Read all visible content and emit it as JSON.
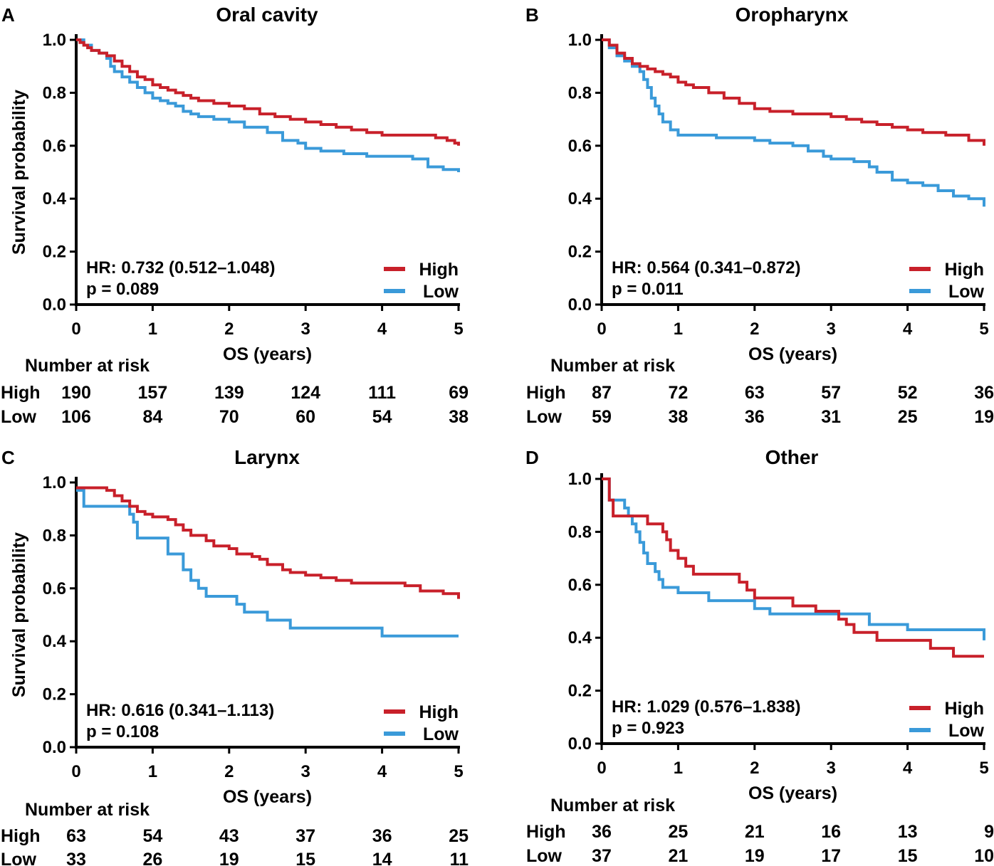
{
  "figure": {
    "colors": {
      "high": "#c8202a",
      "low": "#3a9ad9"
    },
    "x_axis_label": "OS (years)",
    "y_axis_label": "Survival probability",
    "risk_title": "Number at risk",
    "legend": {
      "high": "High",
      "low": "Low"
    }
  },
  "chart_data": [
    {
      "type": "line",
      "letter": "A",
      "title": "Oral cavity",
      "xlabel": "OS (years)",
      "ylabel": "Survival probability",
      "xlim": [
        0,
        5
      ],
      "ylim": [
        0,
        1.0
      ],
      "x_ticks": [
        "0",
        "1",
        "2",
        "3",
        "4",
        "5"
      ],
      "y_ticks": [
        "0.0",
        "0.2",
        "0.4",
        "0.6",
        "0.8",
        "1.0"
      ],
      "hr_text": "HR: 0.732 (0.512–1.048)",
      "p_text": "p = 0.089",
      "series": [
        {
          "name": "High",
          "x": [
            0,
            0.05,
            0.1,
            0.15,
            0.2,
            0.3,
            0.4,
            0.5,
            0.6,
            0.7,
            0.8,
            0.9,
            1.0,
            1.1,
            1.2,
            1.3,
            1.4,
            1.5,
            1.6,
            1.8,
            2.0,
            2.2,
            2.4,
            2.6,
            2.8,
            3.0,
            3.2,
            3.4,
            3.6,
            3.8,
            4.0,
            4.2,
            4.5,
            4.7,
            4.85,
            4.95,
            5.0
          ],
          "y": [
            1.0,
            0.99,
            0.98,
            0.97,
            0.96,
            0.95,
            0.94,
            0.92,
            0.9,
            0.88,
            0.86,
            0.85,
            0.83,
            0.82,
            0.81,
            0.8,
            0.79,
            0.78,
            0.77,
            0.76,
            0.75,
            0.74,
            0.72,
            0.71,
            0.7,
            0.69,
            0.68,
            0.67,
            0.66,
            0.65,
            0.64,
            0.64,
            0.64,
            0.63,
            0.62,
            0.61,
            0.6
          ]
        },
        {
          "name": "Low",
          "x": [
            0,
            0.1,
            0.2,
            0.3,
            0.4,
            0.45,
            0.5,
            0.6,
            0.7,
            0.8,
            0.9,
            1.0,
            1.1,
            1.2,
            1.3,
            1.4,
            1.5,
            1.6,
            1.8,
            2.0,
            2.2,
            2.5,
            2.7,
            2.9,
            3.0,
            3.2,
            3.5,
            3.8,
            4.0,
            4.2,
            4.4,
            4.6,
            4.8,
            5.0
          ],
          "y": [
            1.0,
            0.98,
            0.96,
            0.95,
            0.93,
            0.9,
            0.88,
            0.86,
            0.84,
            0.82,
            0.8,
            0.78,
            0.77,
            0.76,
            0.75,
            0.73,
            0.72,
            0.71,
            0.7,
            0.69,
            0.67,
            0.65,
            0.62,
            0.61,
            0.59,
            0.58,
            0.57,
            0.56,
            0.56,
            0.56,
            0.55,
            0.52,
            0.51,
            0.5
          ]
        }
      ],
      "risk_table": {
        "High": [
          "190",
          "157",
          "139",
          "124",
          "111",
          "69"
        ],
        "Low": [
          "106",
          "84",
          "70",
          "60",
          "54",
          "38"
        ]
      }
    },
    {
      "type": "line",
      "letter": "B",
      "title": "Oropharynx",
      "xlabel": "OS (years)",
      "ylabel": "Survival probability",
      "xlim": [
        0,
        5
      ],
      "ylim": [
        0,
        1.0
      ],
      "x_ticks": [
        "0",
        "1",
        "2",
        "3",
        "4",
        "5"
      ],
      "y_ticks": [
        "0.0",
        "0.2",
        "0.4",
        "0.6",
        "0.8",
        "1.0"
      ],
      "hr_text": "HR: 0.564 (0.341–0.872)",
      "p_text": "p = 0.011",
      "series": [
        {
          "name": "High",
          "x": [
            0,
            0.1,
            0.2,
            0.3,
            0.4,
            0.5,
            0.6,
            0.7,
            0.8,
            0.9,
            1.0,
            1.1,
            1.2,
            1.4,
            1.6,
            1.8,
            2.0,
            2.2,
            2.5,
            3.0,
            3.2,
            3.4,
            3.6,
            3.8,
            4.0,
            4.2,
            4.5,
            4.8,
            5.0
          ],
          "y": [
            1.0,
            0.98,
            0.95,
            0.93,
            0.91,
            0.9,
            0.89,
            0.88,
            0.87,
            0.86,
            0.84,
            0.83,
            0.82,
            0.8,
            0.78,
            0.76,
            0.74,
            0.73,
            0.72,
            0.71,
            0.7,
            0.69,
            0.68,
            0.67,
            0.66,
            0.65,
            0.64,
            0.62,
            0.6
          ]
        },
        {
          "name": "Low",
          "x": [
            0,
            0.1,
            0.2,
            0.3,
            0.4,
            0.5,
            0.55,
            0.6,
            0.65,
            0.7,
            0.75,
            0.8,
            0.9,
            1.0,
            1.5,
            2.0,
            2.2,
            2.5,
            2.7,
            2.9,
            3.0,
            3.3,
            3.5,
            3.6,
            3.8,
            4.0,
            4.2,
            4.4,
            4.6,
            4.8,
            5.0
          ],
          "y": [
            1.0,
            0.97,
            0.94,
            0.92,
            0.9,
            0.88,
            0.85,
            0.82,
            0.78,
            0.75,
            0.72,
            0.69,
            0.66,
            0.64,
            0.63,
            0.62,
            0.61,
            0.6,
            0.58,
            0.56,
            0.55,
            0.54,
            0.52,
            0.5,
            0.47,
            0.46,
            0.45,
            0.43,
            0.41,
            0.4,
            0.37
          ]
        }
      ],
      "risk_table": {
        "High": [
          "87",
          "72",
          "63",
          "57",
          "52",
          "36"
        ],
        "Low": [
          "59",
          "38",
          "36",
          "31",
          "25",
          "19"
        ]
      }
    },
    {
      "type": "line",
      "letter": "C",
      "title": "Larynx",
      "xlabel": "OS (years)",
      "ylabel": "Survival probability",
      "xlim": [
        0,
        5
      ],
      "ylim": [
        0,
        1.0
      ],
      "x_ticks": [
        "0",
        "1",
        "2",
        "3",
        "4",
        "5"
      ],
      "y_ticks": [
        "0.0",
        "0.2",
        "0.4",
        "0.6",
        "0.8",
        "1.0"
      ],
      "hr_text": "HR: 0.616 (0.341–1.113)",
      "p_text": "p = 0.108",
      "series": [
        {
          "name": "High",
          "x": [
            0,
            0.4,
            0.5,
            0.6,
            0.7,
            0.8,
            0.9,
            1.0,
            1.2,
            1.3,
            1.4,
            1.5,
            1.7,
            1.8,
            2.0,
            2.1,
            2.3,
            2.4,
            2.5,
            2.7,
            2.8,
            3.0,
            3.2,
            3.4,
            3.6,
            4.0,
            4.3,
            4.5,
            4.8,
            5.0
          ],
          "y": [
            0.98,
            0.97,
            0.95,
            0.93,
            0.91,
            0.89,
            0.88,
            0.87,
            0.86,
            0.84,
            0.82,
            0.8,
            0.78,
            0.76,
            0.75,
            0.73,
            0.72,
            0.71,
            0.69,
            0.67,
            0.66,
            0.65,
            0.64,
            0.63,
            0.62,
            0.62,
            0.61,
            0.59,
            0.58,
            0.56
          ]
        },
        {
          "name": "Low",
          "x": [
            0,
            0.1,
            0.6,
            0.7,
            0.75,
            0.8,
            1.0,
            1.2,
            1.3,
            1.4,
            1.5,
            1.6,
            1.7,
            2.0,
            2.1,
            2.2,
            2.5,
            2.8,
            3.0,
            3.5,
            4.0,
            4.5,
            5.0
          ],
          "y": [
            0.97,
            0.91,
            0.91,
            0.88,
            0.85,
            0.79,
            0.79,
            0.73,
            0.73,
            0.67,
            0.63,
            0.6,
            0.57,
            0.57,
            0.54,
            0.51,
            0.48,
            0.45,
            0.45,
            0.45,
            0.42,
            0.42,
            0.42
          ]
        }
      ],
      "risk_table": {
        "High": [
          "63",
          "54",
          "43",
          "37",
          "36",
          "25"
        ],
        "Low": [
          "33",
          "26",
          "19",
          "15",
          "14",
          "11"
        ]
      }
    },
    {
      "type": "line",
      "letter": "D",
      "title": "Other",
      "xlabel": "OS (years)",
      "ylabel": "Survival probability",
      "xlim": [
        0,
        5
      ],
      "ylim": [
        0,
        1.0
      ],
      "x_ticks": [
        "0",
        "1",
        "2",
        "3",
        "4",
        "5"
      ],
      "y_ticks": [
        "0.0",
        "0.2",
        "0.4",
        "0.6",
        "0.8",
        "1.0"
      ],
      "hr_text": "HR: 1.029 (0.576–1.838)",
      "p_text": "p = 0.923",
      "series": [
        {
          "name": "High",
          "x": [
            0,
            0.1,
            0.15,
            0.3,
            0.6,
            0.8,
            0.85,
            0.9,
            1.0,
            1.1,
            1.2,
            1.3,
            1.8,
            1.9,
            2.0,
            2.5,
            2.8,
            3.0,
            3.1,
            3.2,
            3.3,
            3.6,
            3.9,
            4.3,
            4.6,
            5.0
          ],
          "y": [
            1.0,
            0.92,
            0.86,
            0.86,
            0.83,
            0.8,
            0.77,
            0.73,
            0.7,
            0.67,
            0.64,
            0.64,
            0.61,
            0.58,
            0.55,
            0.52,
            0.5,
            0.5,
            0.47,
            0.45,
            0.42,
            0.39,
            0.39,
            0.36,
            0.33,
            0.33
          ]
        },
        {
          "name": "Low",
          "x": [
            0,
            0.1,
            0.3,
            0.35,
            0.4,
            0.45,
            0.5,
            0.55,
            0.6,
            0.7,
            0.75,
            0.8,
            1.0,
            1.2,
            1.4,
            2.0,
            2.2,
            2.5,
            3.0,
            3.5,
            4.0,
            4.5,
            4.9,
            5.0
          ],
          "y": [
            1.0,
            0.92,
            0.89,
            0.86,
            0.83,
            0.8,
            0.76,
            0.72,
            0.68,
            0.65,
            0.62,
            0.59,
            0.57,
            0.57,
            0.54,
            0.51,
            0.49,
            0.49,
            0.49,
            0.45,
            0.43,
            0.43,
            0.43,
            0.39
          ]
        }
      ],
      "risk_table": {
        "High": [
          "36",
          "25",
          "21",
          "16",
          "13",
          "9"
        ],
        "Low": [
          "37",
          "21",
          "19",
          "17",
          "15",
          "10"
        ]
      }
    }
  ]
}
